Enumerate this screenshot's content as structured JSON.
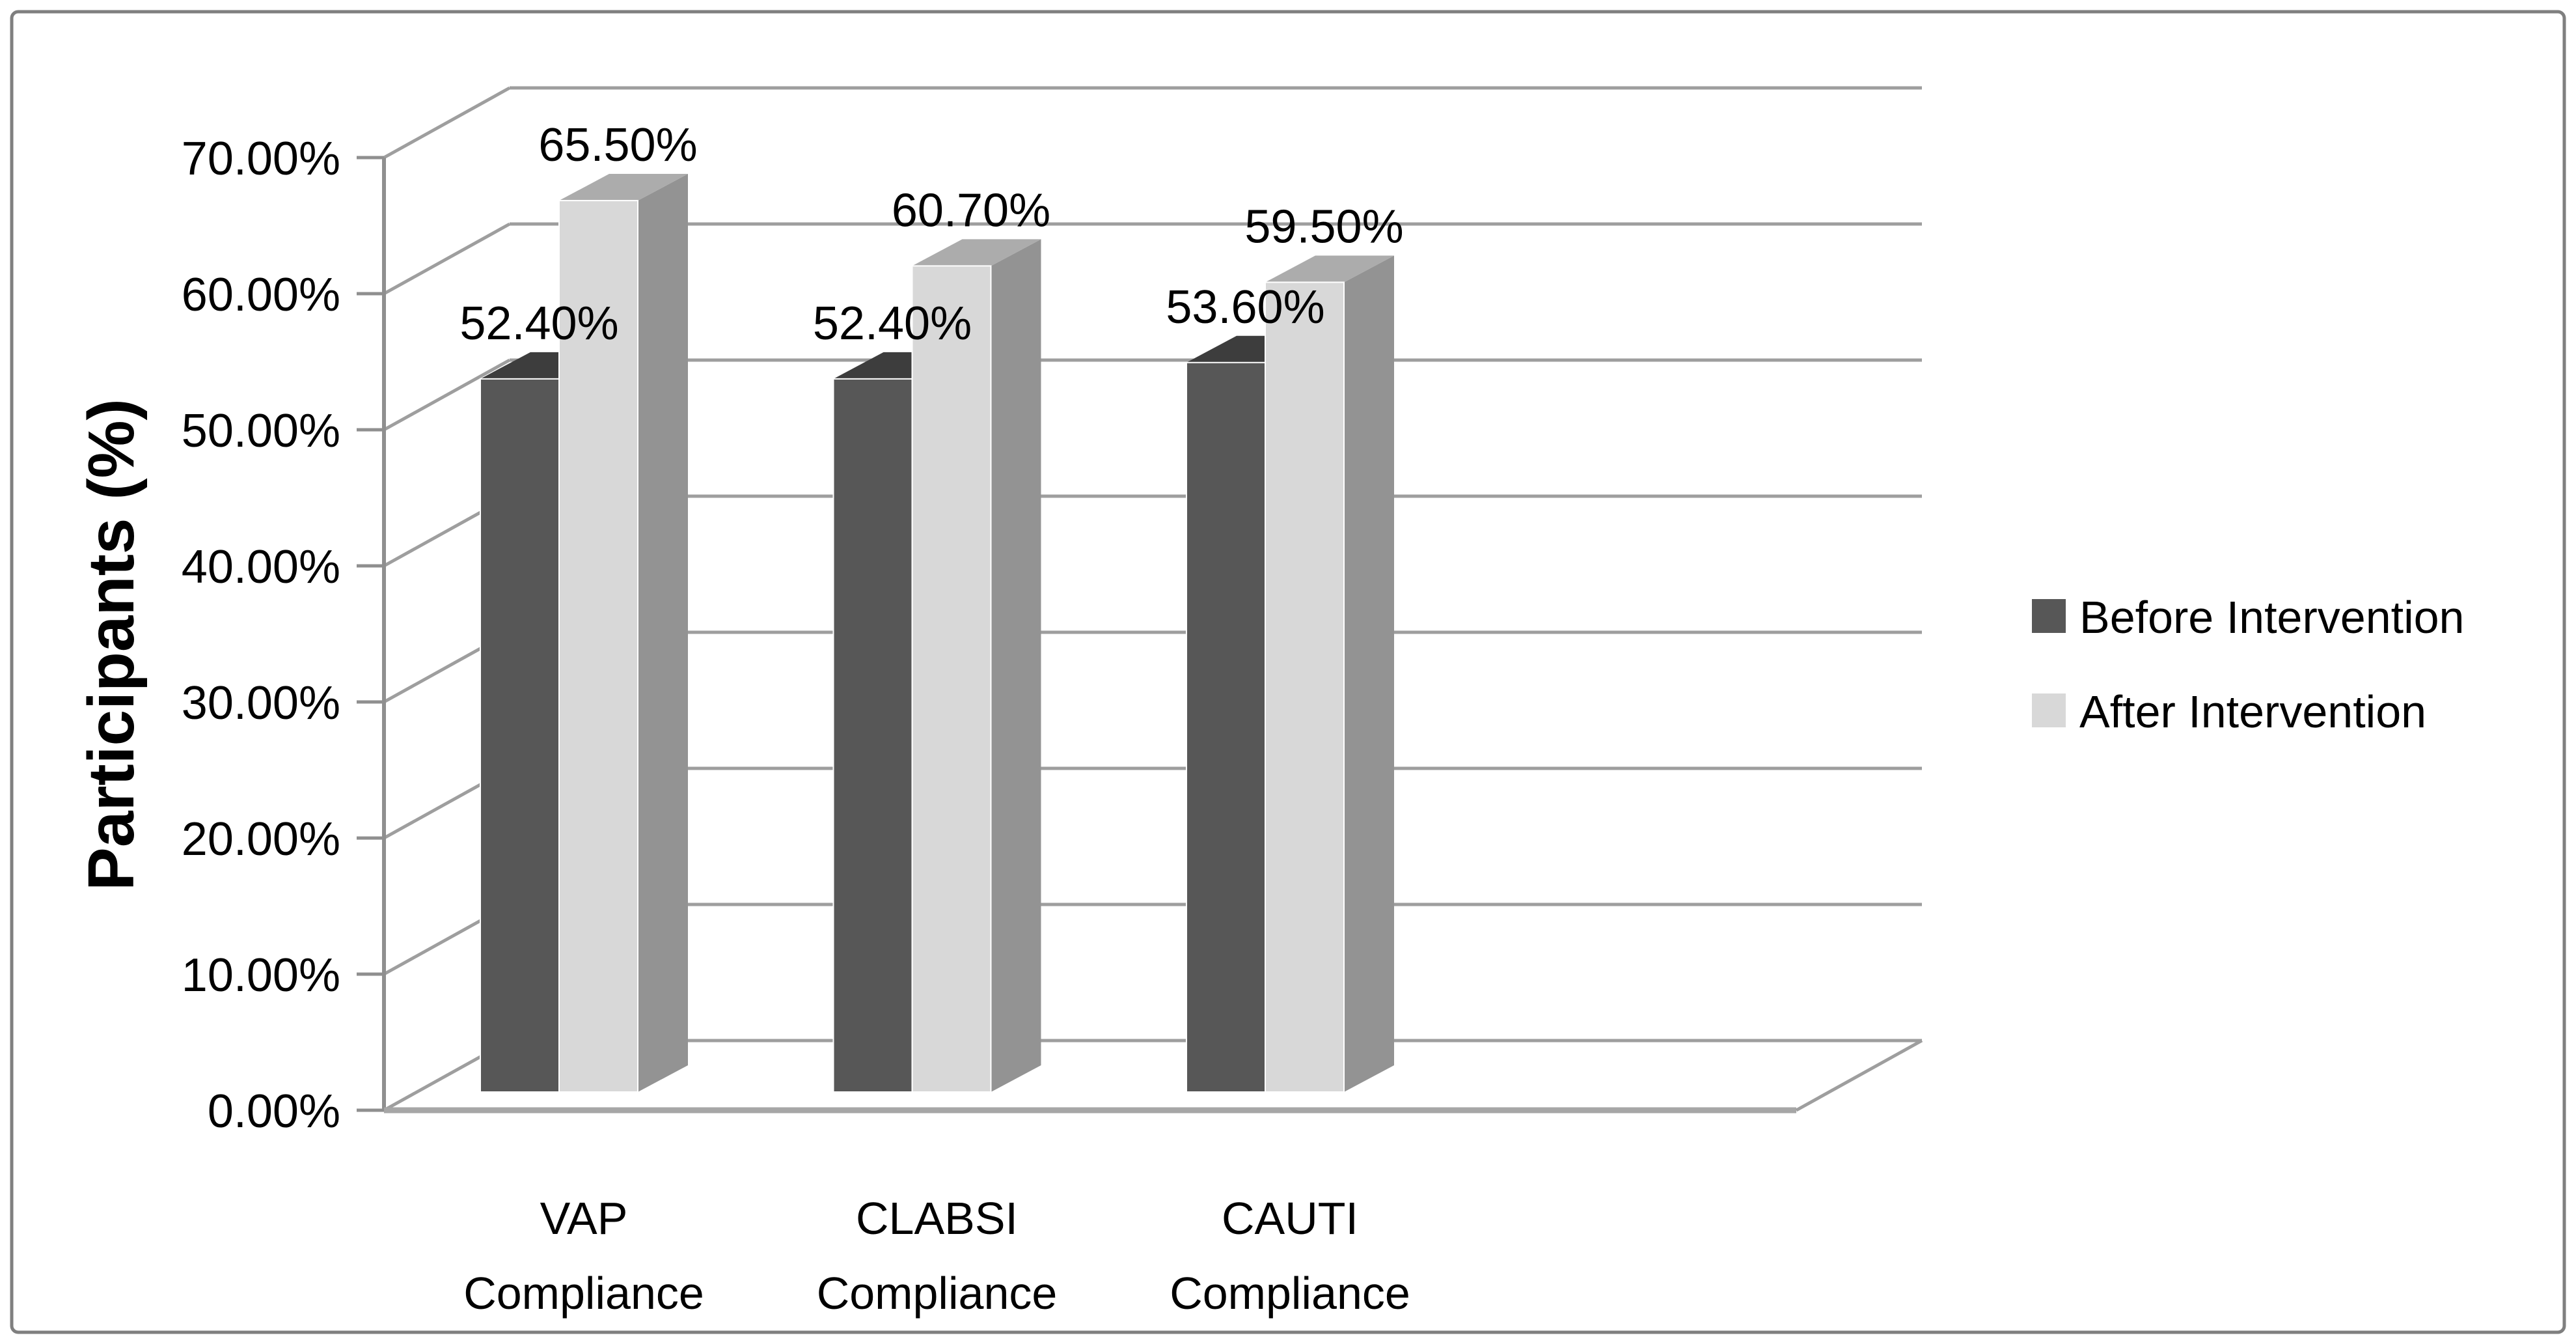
{
  "window": {
    "background": "#ffffff",
    "border_color": "#7f7f7f"
  },
  "chart_data": {
    "type": "bar",
    "projection": "3d",
    "title": "",
    "categories": [
      "VAP Compliance",
      "CLABSI Compliance",
      "CAUTI Compliance"
    ],
    "category_lines": [
      [
        "VAP",
        "Compliance"
      ],
      [
        "CLABSI",
        "Compliance"
      ],
      [
        "CAUTI",
        "Compliance"
      ]
    ],
    "series": [
      {
        "name": "Before Intervention",
        "values": [
          52.4,
          52.4,
          53.6
        ],
        "labels": [
          "52.40%",
          "52.40%",
          "53.60%"
        ],
        "color": "#575757",
        "top_color": "#3d3d3d",
        "side_color": "#6e6e6e"
      },
      {
        "name": "After Intervention",
        "values": [
          65.5,
          60.7,
          59.5
        ],
        "labels": [
          "65.50%",
          "60.70%",
          "59.50%"
        ],
        "color": "#d8d8d8",
        "top_color": "#acacac",
        "side_color": "#939393"
      }
    ],
    "y_axis": {
      "label": "Participants (%)",
      "min": 0,
      "max": 70,
      "step": 10,
      "tick_labels": [
        "0.00%",
        "10.00%",
        "20.00%",
        "30.00%",
        "40.00%",
        "50.00%",
        "60.00%",
        "70.00%"
      ],
      "grid": true
    },
    "x_axis": {
      "label": ""
    },
    "legend": {
      "position": "right"
    },
    "text_color": "#000000",
    "grid_color": "#9e9e9e",
    "axis_color": "#8f8f8f",
    "floor_color": "#a6a6a6"
  }
}
